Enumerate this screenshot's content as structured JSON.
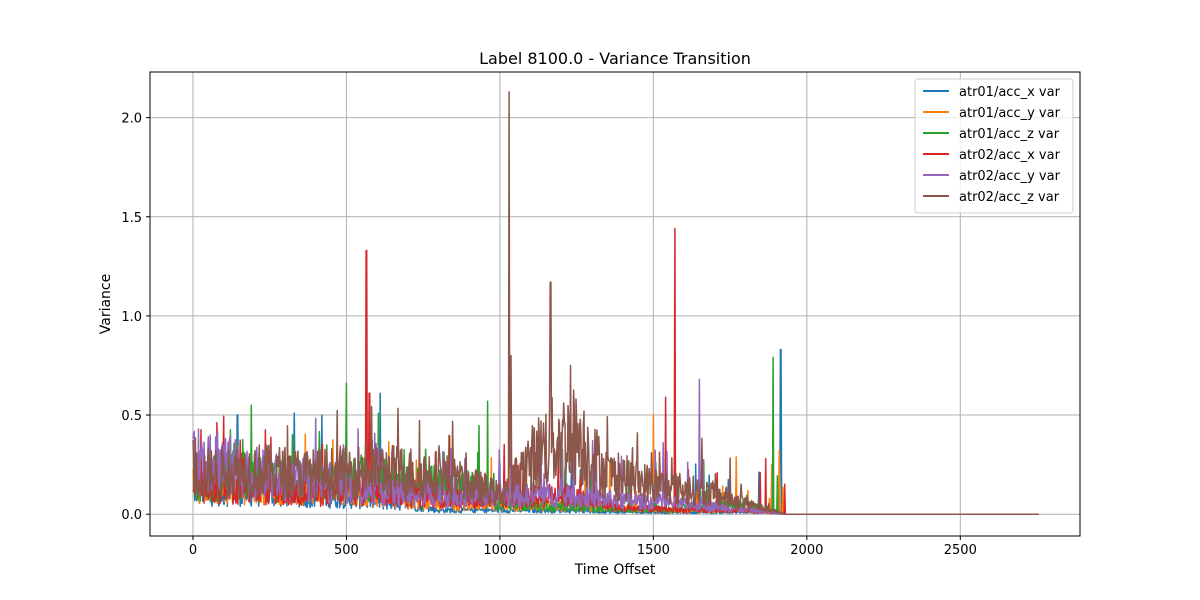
{
  "chart_data": {
    "type": "line",
    "title": "Label 8100.0 - Variance Transition",
    "xlabel": "Time Offset",
    "ylabel": "Variance",
    "xlim": [
      -140,
      2890
    ],
    "ylim": [
      -0.11,
      2.23
    ],
    "xticks": [
      0,
      500,
      1000,
      1500,
      2000,
      2500
    ],
    "yticks": [
      0.0,
      0.5,
      1.0,
      1.5,
      2.0
    ],
    "xtick_labels": [
      "0",
      "500",
      "1000",
      "1500",
      "2000",
      "2500"
    ],
    "ytick_labels": [
      "0.0",
      "0.5",
      "1.0",
      "1.5",
      "2.0"
    ],
    "grid": true,
    "legend_position": "top-right",
    "x_end": 2755,
    "series": [
      {
        "name": "atr01/acc_x var",
        "color": "#1f77b4",
        "segments": [
          [
            0,
            0.12
          ],
          [
            100,
            0.11
          ],
          [
            300,
            0.1
          ],
          [
            500,
            0.08
          ],
          [
            700,
            0.05
          ],
          [
            800,
            0.02
          ],
          [
            1000,
            0.02
          ],
          [
            1200,
            0.02
          ],
          [
            1400,
            0.01
          ],
          [
            1700,
            0.01
          ],
          [
            1850,
            0.01
          ],
          [
            1930,
            0.0
          ]
        ],
        "spikes": [
          [
            145,
            0.5
          ],
          [
            330,
            0.51
          ],
          [
            420,
            0.5
          ],
          [
            610,
            0.61
          ],
          [
            1915,
            0.83
          ]
        ]
      },
      {
        "name": "atr01/acc_y var",
        "color": "#ff7f0e",
        "segments": [
          [
            0,
            0.15
          ],
          [
            200,
            0.13
          ],
          [
            400,
            0.12
          ],
          [
            600,
            0.09
          ],
          [
            800,
            0.05
          ],
          [
            1000,
            0.05
          ],
          [
            1200,
            0.04
          ],
          [
            1400,
            0.03
          ],
          [
            1600,
            0.02
          ],
          [
            1800,
            0.02
          ],
          [
            1930,
            0.0
          ]
        ],
        "spikes": [
          [
            1500,
            0.5
          ],
          [
            1910,
            0.32
          ]
        ]
      },
      {
        "name": "atr01/acc_z var",
        "color": "#2ca02c",
        "segments": [
          [
            0,
            0.17
          ],
          [
            150,
            0.2
          ],
          [
            300,
            0.16
          ],
          [
            500,
            0.2
          ],
          [
            700,
            0.15
          ],
          [
            900,
            0.14
          ],
          [
            1000,
            0.05
          ],
          [
            1200,
            0.04
          ],
          [
            1400,
            0.02
          ],
          [
            1600,
            0.03
          ],
          [
            1800,
            0.05
          ],
          [
            1930,
            0.0
          ]
        ],
        "spikes": [
          [
            500,
            0.66
          ],
          [
            190,
            0.55
          ],
          [
            960,
            0.57
          ],
          [
            1890,
            0.79
          ]
        ]
      },
      {
        "name": "atr02/acc_x var",
        "color": "#d62728",
        "segments": [
          [
            0,
            0.16
          ],
          [
            200,
            0.13
          ],
          [
            400,
            0.1
          ],
          [
            600,
            0.12
          ],
          [
            800,
            0.08
          ],
          [
            1000,
            0.07
          ],
          [
            1200,
            0.1
          ],
          [
            1400,
            0.03
          ],
          [
            1600,
            0.02
          ],
          [
            1800,
            0.02
          ],
          [
            1930,
            0.0
          ]
        ],
        "spikes": [
          [
            565,
            1.33
          ],
          [
            575,
            0.61
          ],
          [
            1570,
            1.44
          ],
          [
            1540,
            0.59
          ]
        ]
      },
      {
        "name": "atr02/acc_y var",
        "color": "#9467bd",
        "segments": [
          [
            0,
            0.25
          ],
          [
            60,
            0.3
          ],
          [
            150,
            0.22
          ],
          [
            300,
            0.18
          ],
          [
            500,
            0.15
          ],
          [
            700,
            0.1
          ],
          [
            900,
            0.1
          ],
          [
            1100,
            0.1
          ],
          [
            1300,
            0.08
          ],
          [
            1500,
            0.06
          ],
          [
            1700,
            0.04
          ],
          [
            1930,
            0.0
          ]
        ],
        "spikes": [
          [
            50,
            0.39
          ],
          [
            1650,
            0.68
          ]
        ]
      },
      {
        "name": "atr02/acc_z var",
        "color": "#8c564b",
        "segments": [
          [
            0,
            0.2
          ],
          [
            200,
            0.22
          ],
          [
            400,
            0.2
          ],
          [
            600,
            0.22
          ],
          [
            800,
            0.2
          ],
          [
            1000,
            0.1
          ],
          [
            1150,
            0.35
          ],
          [
            1250,
            0.4
          ],
          [
            1350,
            0.2
          ],
          [
            1500,
            0.15
          ],
          [
            1700,
            0.1
          ],
          [
            1930,
            0.0
          ]
        ],
        "spikes": [
          [
            1030,
            2.13
          ],
          [
            1035,
            0.8
          ],
          [
            1165,
            1.17
          ],
          [
            1230,
            0.75
          ]
        ]
      }
    ]
  }
}
